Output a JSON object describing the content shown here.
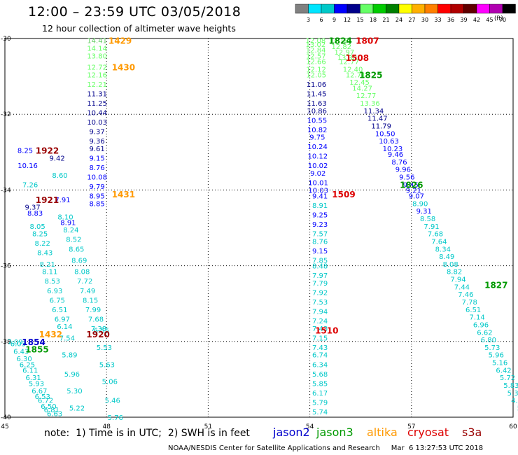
{
  "title": "12:00 – 23:59 UTC 03/05/2018",
  "subtitle": "12 hour collection of altimeter wave heights",
  "note": "note:  1) Time is in UTC;  2) SWH is in feet",
  "footer": "NOAA/NESDIS Center for Satellite Applications and Research     Mar  6 13:27:53 UTC 2018",
  "satellites": [
    {
      "name": "jason2",
      "color": "#0000cc"
    },
    {
      "name": "jason3",
      "color": "#009900"
    },
    {
      "name": "altika",
      "color": "#ff9900"
    },
    {
      "name": "cryosat",
      "color": "#dd0000"
    },
    {
      "name": "s3a",
      "color": "#990000"
    }
  ],
  "colorbar": {
    "unit": "(ft)",
    "ticks": [
      "3",
      "6",
      "9",
      "12",
      "15",
      "18",
      "21",
      "24",
      "27",
      "30",
      "33",
      "36",
      "39",
      "42",
      "45",
      "70"
    ],
    "colors": [
      "#808080",
      "#00e5ff",
      "#00c8c8",
      "#0000ff",
      "#00008b",
      "#66ff66",
      "#00cc00",
      "#008000",
      "#ffff00",
      "#ffb000",
      "#ff8000",
      "#ff0000",
      "#b00000",
      "#600000",
      "#ff00ff",
      "#b000b0",
      "#000000"
    ]
  },
  "chart_data": {
    "type": "scatter",
    "xlabel": "",
    "ylabel": "",
    "xlim": [
      45,
      60
    ],
    "ylim": [
      -40,
      -30
    ],
    "xticks": [
      "45",
      "48",
      "51",
      "54",
      "57",
      "60"
    ],
    "yticks": [
      "-30",
      "-32",
      "-34",
      "-36",
      "-38",
      "-40"
    ],
    "grid": true,
    "time_labels": [
      {
        "text": "1429",
        "lon": 48.4,
        "lat": -30.05,
        "color": "#ff9900"
      },
      {
        "text": "1430",
        "lon": 48.5,
        "lat": -30.75,
        "color": "#ff9900"
      },
      {
        "text": "1431",
        "lon": 48.5,
        "lat": -34.1,
        "color": "#ff9900"
      },
      {
        "text": "1432",
        "lon": 46.35,
        "lat": -37.8,
        "color": "#ff9900"
      },
      {
        "text": "1922",
        "lon": 46.25,
        "lat": -32.95,
        "color": "#990000"
      },
      {
        "text": "1921",
        "lon": 46.25,
        "lat": -34.25,
        "color": "#990000"
      },
      {
        "text": "1920",
        "lon": 47.75,
        "lat": -37.8,
        "color": "#990000"
      },
      {
        "text": "1854",
        "lon": 45.85,
        "lat": -38.0,
        "color": "#0000cc"
      },
      {
        "text": "1855",
        "lon": 45.95,
        "lat": -38.2,
        "color": "#009900"
      },
      {
        "text": "1807",
        "lon": 55.7,
        "lat": -30.05,
        "color": "#dd0000"
      },
      {
        "text": "1824",
        "lon": 54.9,
        "lat": -30.05,
        "color": "#009900"
      },
      {
        "text": "1508",
        "lon": 55.4,
        "lat": -30.5,
        "color": "#dd0000"
      },
      {
        "text": "1825",
        "lon": 55.8,
        "lat": -30.95,
        "color": "#009900"
      },
      {
        "text": "1509",
        "lon": 55.0,
        "lat": -34.1,
        "color": "#dd0000"
      },
      {
        "text": "1510",
        "lon": 54.5,
        "lat": -37.7,
        "color": "#dd0000"
      },
      {
        "text": "1826",
        "lon": 57.0,
        "lat": -33.85,
        "color": "#009900"
      },
      {
        "text": "1827",
        "lon": 59.5,
        "lat": -36.5,
        "color": "#009900"
      }
    ],
    "series": [
      {
        "name": "altika",
        "x_lon": [
          48.0,
          48.0,
          48.0,
          48.0,
          48.0,
          48.0,
          48.0,
          48.0,
          48.0,
          48.0,
          48.0,
          48.0,
          48.0,
          48.0,
          48.0,
          48.0,
          48.0,
          48.0,
          48.0
        ],
        "points": [
          [
            "14.41",
            -30.05,
            "#66cc66"
          ],
          [
            "14.14",
            -30.25,
            "#66ff66"
          ],
          [
            "13.80",
            -30.45,
            "#66ff66"
          ],
          [
            "12.72",
            -30.75,
            "#66ff66"
          ],
          [
            "12.16",
            -30.95,
            "#66ff66"
          ],
          [
            "12.21",
            -31.2,
            "#66ff66"
          ],
          [
            "11.31",
            -31.45,
            "#00008b"
          ],
          [
            "11.25",
            -31.7,
            "#00008b"
          ],
          [
            "10.44",
            -31.95,
            "#00008b"
          ],
          [
            "10.03",
            -32.2,
            "#00008b"
          ],
          [
            "9.37",
            -32.45,
            "#00008b"
          ],
          [
            "9.36",
            -32.7,
            "#00008b"
          ],
          [
            "9.61",
            -32.9,
            "#00008b"
          ],
          [
            "9.15",
            -33.15,
            "#0000ff"
          ],
          [
            "8.76",
            -33.4,
            "#0000ff"
          ],
          [
            "10.08",
            -33.65,
            "#0000ff"
          ],
          [
            "9.79",
            -33.9,
            "#0000ff"
          ],
          [
            "8.95",
            -34.15,
            "#0000ff"
          ],
          [
            "8.85",
            -34.35,
            "#0000ff"
          ]
        ]
      },
      {
        "name": "cryosat-s3a-left",
        "points": [
          [
            "8.25",
            -32.95,
            "#0000ff"
          ],
          [
            "9.42",
            -33.15,
            "#00008b"
          ],
          [
            "10.16",
            -33.35,
            "#0000ff"
          ],
          [
            "8.60",
            -33.6,
            "#00c8c8"
          ],
          [
            "7.26",
            -33.85,
            "#00c8c8"
          ],
          [
            "7.91",
            -34.25,
            "#0000ff"
          ],
          [
            "9.37",
            -34.45,
            "#00008b"
          ],
          [
            "8.10",
            -34.7,
            "#00c8c8"
          ],
          [
            "8.83",
            -34.6,
            "#0000ff"
          ],
          [
            "8.91",
            -34.85,
            "#0000ff"
          ],
          [
            "8.05",
            -34.95,
            "#00c8c8"
          ],
          [
            "8.24",
            -35.05,
            "#00c8c8"
          ],
          [
            "8.25",
            -35.15,
            "#00c8c8"
          ],
          [
            "8.52",
            -35.3,
            "#00c8c8"
          ],
          [
            "8.22",
            -35.4,
            "#00c8c8"
          ],
          [
            "8.65",
            -35.55,
            "#00c8c8"
          ],
          [
            "8.43",
            -35.65,
            "#00c8c8"
          ],
          [
            "8.69",
            -35.85,
            "#00c8c8"
          ],
          [
            "8.21",
            -35.95,
            "#00c8c8"
          ],
          [
            "8.08",
            -36.15,
            "#00c8c8"
          ],
          [
            "8.11",
            -36.15,
            "#00c8c8"
          ],
          [
            "7.72",
            -36.4,
            "#00c8c8"
          ],
          [
            "8.53",
            -36.4,
            "#00c8c8"
          ],
          [
            "7.49",
            -36.65,
            "#00c8c8"
          ],
          [
            "6.93",
            -36.65,
            "#00c8c8"
          ],
          [
            "8.15",
            -36.9,
            "#00c8c8"
          ],
          [
            "6.75",
            -36.9,
            "#00c8c8"
          ],
          [
            "7.99",
            -37.15,
            "#00c8c8"
          ],
          [
            "6.51",
            -37.15,
            "#00c8c8"
          ],
          [
            "7.68",
            -37.4,
            "#00c8c8"
          ],
          [
            "6.97",
            -37.4,
            "#00c8c8"
          ],
          [
            "7.38",
            -37.65,
            "#00c8c8"
          ],
          [
            "6.14",
            -37.6,
            "#00c8c8"
          ],
          [
            "6.55",
            -37.7,
            "#00c8c8"
          ],
          [
            "7.54",
            -37.9,
            "#00c8c8"
          ],
          [
            "5.53",
            -38.15,
            "#00c8c8"
          ],
          [
            "5.89",
            -38.35,
            "#00c8c8"
          ],
          [
            "5.63",
            -38.6,
            "#00c8c8"
          ],
          [
            "5.96",
            -38.85,
            "#00c8c8"
          ],
          [
            "5.06",
            -39.05,
            "#00c8c8"
          ],
          [
            "5.30",
            -39.3,
            "#00c8c8"
          ],
          [
            "5.46",
            -39.55,
            "#00c8c8"
          ],
          [
            "5.22",
            -39.75,
            "#00c8c8"
          ],
          [
            "5.76",
            -40.0,
            "#00c8c8"
          ]
        ]
      },
      {
        "name": "jason-left-dense",
        "points": [
          [
            "7.09",
            -38.0,
            "#00c8c8"
          ],
          [
            "6.03",
            -38.05,
            "#00c8c8"
          ],
          [
            "6.43",
            -38.25,
            "#00c8c8"
          ],
          [
            "6.30",
            -38.45,
            "#00c8c8"
          ],
          [
            "6.25",
            -38.6,
            "#00c8c8"
          ],
          [
            "6.11",
            -38.75,
            "#00c8c8"
          ],
          [
            "6.31",
            -38.95,
            "#00c8c8"
          ],
          [
            "5.93",
            -39.1,
            "#00c8c8"
          ],
          [
            "6.67",
            -39.3,
            "#00c8c8"
          ],
          [
            "6.53",
            -39.45,
            "#00c8c8"
          ],
          [
            "6.72",
            -39.55,
            "#00c8c8"
          ],
          [
            "6.50",
            -39.7,
            "#00c8c8"
          ],
          [
            "6.81",
            -39.8,
            "#00c8c8"
          ],
          [
            "6.63",
            -39.9,
            "#00c8c8"
          ]
        ]
      },
      {
        "name": "jason-center",
        "points": [
          [
            "12.08",
            -30.05,
            "#66ff66"
          ],
          [
            "13.02",
            -30.15,
            "#66ff66"
          ],
          [
            "12.84",
            -30.3,
            "#66ff66"
          ],
          [
            "12.57",
            -30.45,
            "#66ff66"
          ],
          [
            "12.66",
            -30.6,
            "#66ff66"
          ],
          [
            "12.12",
            -30.8,
            "#66ff66"
          ],
          [
            "12.05",
            -30.95,
            "#66ff66"
          ],
          [
            "11.06",
            -31.2,
            "#00008b"
          ],
          [
            "11.45",
            -31.45,
            "#00008b"
          ],
          [
            "11.63",
            -31.7,
            "#00008b"
          ],
          [
            "10.86",
            -31.9,
            "#00008b"
          ],
          [
            "10.55",
            -32.15,
            "#0000ff"
          ],
          [
            "10.82",
            -32.4,
            "#0000ff"
          ],
          [
            "9.75",
            -32.6,
            "#0000ff"
          ],
          [
            "10.24",
            -32.85,
            "#0000ff"
          ],
          [
            "10.12",
            -33.1,
            "#0000ff"
          ],
          [
            "10.02",
            -33.35,
            "#0000ff"
          ],
          [
            "9.02",
            -33.55,
            "#0000ff"
          ],
          [
            "10.01",
            -33.8,
            "#0000ff"
          ],
          [
            "10.03",
            -34.0,
            "#0000ff"
          ],
          [
            "9.41",
            -34.15,
            "#0000ff"
          ],
          [
            "8.91",
            -34.4,
            "#00c8c8"
          ],
          [
            "9.25",
            -34.65,
            "#0000ff"
          ],
          [
            "9.23",
            -34.9,
            "#0000ff"
          ],
          [
            "7.57",
            -35.15,
            "#00c8c8"
          ],
          [
            "8.76",
            -35.35,
            "#00c8c8"
          ],
          [
            "9.15",
            -35.6,
            "#0000ff"
          ],
          [
            "7.85",
            -35.85,
            "#00c8c8"
          ],
          [
            "8.48",
            -36.0,
            "#00c8c8"
          ],
          [
            "7.97",
            -36.25,
            "#00c8c8"
          ],
          [
            "7.79",
            -36.45,
            "#00c8c8"
          ],
          [
            "7.92",
            -36.7,
            "#00c8c8"
          ],
          [
            "7.53",
            -36.95,
            "#00c8c8"
          ],
          [
            "7.94",
            -37.2,
            "#00c8c8"
          ],
          [
            "7.24",
            -37.45,
            "#00c8c8"
          ],
          [
            "7.43",
            -37.65,
            "#00c8c8"
          ],
          [
            "7.15",
            -37.9,
            "#00c8c8"
          ],
          [
            "7.43",
            -38.15,
            "#00c8c8"
          ],
          [
            "6.74",
            -38.35,
            "#00c8c8"
          ],
          [
            "6.34",
            -38.6,
            "#00c8c8"
          ],
          [
            "5.68",
            -38.85,
            "#00c8c8"
          ],
          [
            "5.85",
            -39.1,
            "#00c8c8"
          ],
          [
            "6.17",
            -39.35,
            "#00c8c8"
          ],
          [
            "5.79",
            -39.6,
            "#00c8c8"
          ],
          [
            "5.74",
            -39.85,
            "#00c8c8"
          ]
        ]
      },
      {
        "name": "jason3-diag",
        "points": [
          [
            "13.18",
            -30.05,
            "#66ff66"
          ],
          [
            "12.82",
            -30.2,
            "#66ff66"
          ],
          [
            "12.97",
            -30.35,
            "#66ff66"
          ],
          [
            "13.38",
            -30.5,
            "#66ff66"
          ],
          [
            "12.77",
            -30.6,
            "#66ff66"
          ],
          [
            "12.40",
            -30.8,
            "#66ff66"
          ],
          [
            "12.71",
            -30.95,
            "#66ff66"
          ],
          [
            "12.45",
            -31.15,
            "#66ff66"
          ],
          [
            "14.27",
            -31.3,
            "#66ff66"
          ],
          [
            "12.77",
            -31.5,
            "#66ff66"
          ],
          [
            "13.36",
            -31.7,
            "#66ff66"
          ],
          [
            "11.34",
            -31.9,
            "#00008b"
          ],
          [
            "11.47",
            -32.1,
            "#00008b"
          ],
          [
            "11.79",
            -32.3,
            "#00008b"
          ],
          [
            "10.50",
            -32.5,
            "#0000ff"
          ],
          [
            "10.63",
            -32.7,
            "#0000ff"
          ],
          [
            "10.23",
            -32.9,
            "#0000ff"
          ],
          [
            "9.46",
            -33.05,
            "#0000ff"
          ],
          [
            "8.76",
            -33.25,
            "#0000ff"
          ],
          [
            "9.96",
            -33.45,
            "#0000ff"
          ],
          [
            "9.56",
            -33.65,
            "#0000ff"
          ],
          [
            "9.45",
            -33.85,
            "#0000ff"
          ],
          [
            "9.21",
            -34.0,
            "#0000ff"
          ],
          [
            "9.07",
            -34.15,
            "#0000ff"
          ],
          [
            "8.90",
            -34.35,
            "#00c8c8"
          ],
          [
            "9.31",
            -34.55,
            "#0000ff"
          ],
          [
            "8.58",
            -34.75,
            "#00c8c8"
          ],
          [
            "7.91",
            -34.95,
            "#00c8c8"
          ],
          [
            "7.68",
            -35.15,
            "#00c8c8"
          ],
          [
            "7.64",
            -35.35,
            "#00c8c8"
          ],
          [
            "8.34",
            -35.55,
            "#00c8c8"
          ],
          [
            "8.49",
            -35.75,
            "#00c8c8"
          ],
          [
            "8.08",
            -35.95,
            "#00c8c8"
          ],
          [
            "8.82",
            -36.15,
            "#00c8c8"
          ],
          [
            "7.94",
            -36.35,
            "#00c8c8"
          ],
          [
            "7.44",
            -36.55,
            "#00c8c8"
          ],
          [
            "7.46",
            -36.75,
            "#00c8c8"
          ],
          [
            "7.78",
            -36.95,
            "#00c8c8"
          ],
          [
            "6.51",
            -37.15,
            "#00c8c8"
          ],
          [
            "7.14",
            -37.35,
            "#00c8c8"
          ],
          [
            "6.96",
            -37.55,
            "#00c8c8"
          ],
          [
            "6.62",
            -37.75,
            "#00c8c8"
          ],
          [
            "6.80",
            -37.95,
            "#00c8c8"
          ],
          [
            "5.73",
            -38.15,
            "#00c8c8"
          ],
          [
            "5.96",
            -38.35,
            "#00c8c8"
          ],
          [
            "5.16",
            -38.55,
            "#00c8c8"
          ],
          [
            "6.42",
            -38.75,
            "#00c8c8"
          ],
          [
            "5.72",
            -38.95,
            "#00c8c8"
          ],
          [
            "5.83",
            -39.15,
            "#00c8c8"
          ],
          [
            "5.34",
            -39.35,
            "#00c8c8"
          ],
          [
            "4.85",
            -39.55,
            "#00c8c8"
          ],
          [
            "5.6",
            -39.75,
            "#00c8c8"
          ],
          [
            "4.",
            -39.9,
            "#00c8c8"
          ]
        ]
      }
    ]
  }
}
